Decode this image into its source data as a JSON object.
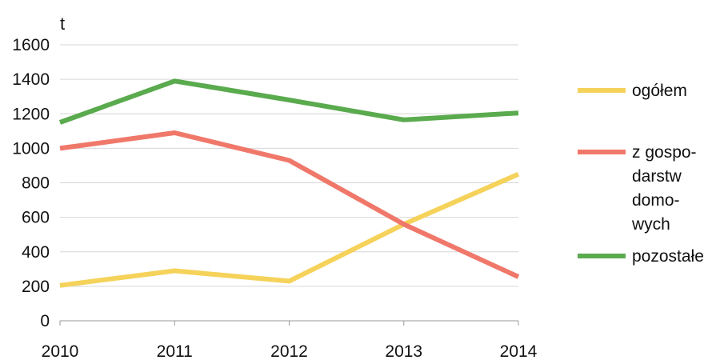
{
  "chart_data": {
    "type": "line",
    "unit_label": "t",
    "x": [
      "2010",
      "2011",
      "2012",
      "2013",
      "2014"
    ],
    "ylim": [
      0,
      1600
    ],
    "yticks": [
      0,
      200,
      400,
      600,
      800,
      1000,
      1200,
      1400,
      1600
    ],
    "ytick_labels": [
      "0",
      "200",
      "400",
      "600",
      "800",
      "1000",
      "1200",
      "1400",
      "1600"
    ],
    "grid": true,
    "legend_position": "right",
    "series": [
      {
        "name": "ogółem",
        "legend_lines": [
          "ogółem"
        ],
        "color": "#f5d25a",
        "values": [
          205,
          290,
          230,
          560,
          850
        ]
      },
      {
        "name": "z gospodarstw domowych",
        "legend_lines": [
          "z gospo-",
          "darstw",
          "domo-",
          "wych"
        ],
        "color": "#f0786a",
        "values": [
          1000,
          1090,
          930,
          560,
          255
        ]
      },
      {
        "name": "pozostałe",
        "legend_lines": [
          "pozostałe"
        ],
        "color": "#5aaa4e",
        "values": [
          1150,
          1390,
          1280,
          1165,
          1205
        ]
      }
    ]
  }
}
